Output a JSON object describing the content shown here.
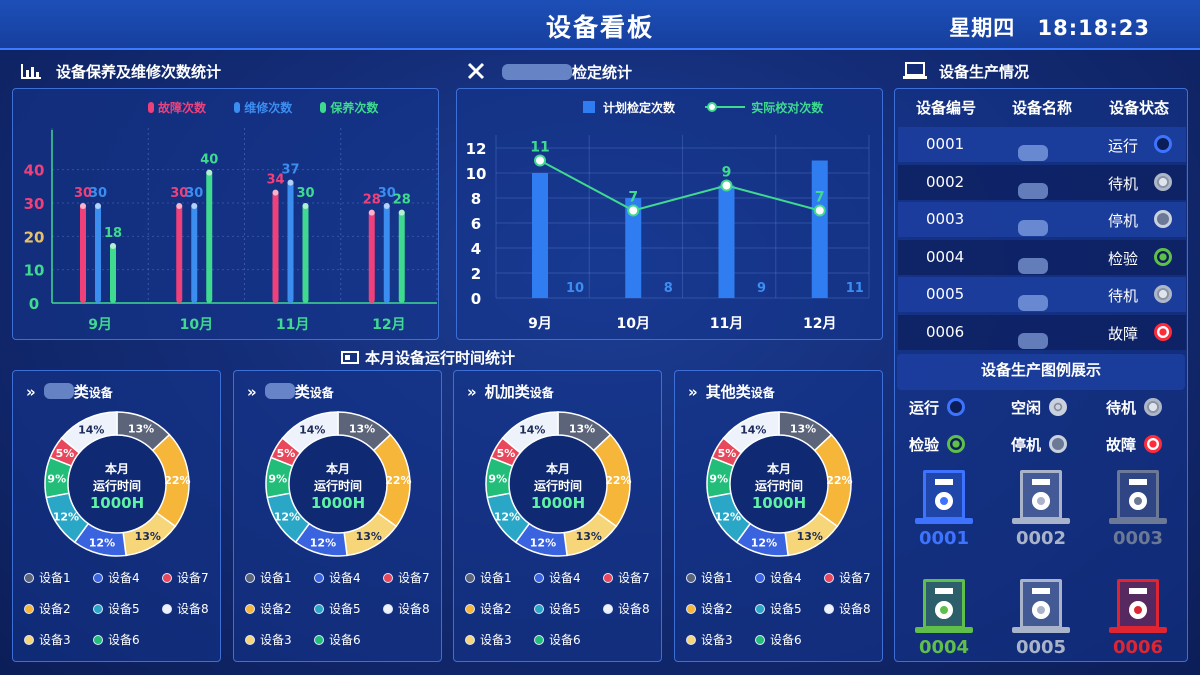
{
  "header": {
    "title": "设备看板",
    "weekday": "星期四",
    "time": "18:18:23"
  },
  "maintenance": {
    "title": "设备保养及维修次数统计",
    "legend": [
      "故障次数",
      "维修次数",
      "保养次数"
    ],
    "colors": [
      "#f0407a",
      "#3c8df0",
      "#3fd98f"
    ]
  },
  "inspection": {
    "title": "检定统计",
    "legend": [
      "计划检定次数",
      "实际校对次数"
    ]
  },
  "runtime_title": "本月设备运行时间统计",
  "chart_data": [
    {
      "type": "bar",
      "title": "设备保养及维修次数统计",
      "categories": [
        "9月",
        "10月",
        "11月",
        "12月"
      ],
      "series": [
        {
          "name": "故障次数",
          "values": [
            30,
            30,
            34,
            28
          ]
        },
        {
          "name": "维修次数",
          "values": [
            30,
            30,
            37,
            30
          ]
        },
        {
          "name": "保养次数",
          "values": [
            18,
            40,
            30,
            28
          ]
        }
      ],
      "yticks": [
        "0",
        "10",
        "20",
        "30",
        "40"
      ],
      "ylim": [
        0,
        45
      ]
    },
    {
      "type": "bar",
      "title": "检定统计",
      "categories": [
        "9月",
        "10月",
        "11月",
        "12月"
      ],
      "series": [
        {
          "name": "计划检定次数",
          "values": [
            10,
            8,
            9,
            11
          ],
          "kind": "bar"
        },
        {
          "name": "实际校对次数",
          "values": [
            11,
            7,
            9,
            7
          ],
          "kind": "line"
        }
      ],
      "yticks": [
        "0",
        "2",
        "4",
        "6",
        "8",
        "10",
        "12"
      ],
      "ylim": [
        0,
        12
      ]
    },
    {
      "type": "pie",
      "title": "类设备",
      "labels": [
        "设备1",
        "设备2",
        "设备3",
        "设备4",
        "设备5",
        "设备6",
        "设备7",
        "设备8"
      ],
      "values": [
        13,
        22,
        13,
        12,
        12,
        9,
        5,
        14
      ],
      "center_label": "本月运行时间",
      "center_value": "1000H"
    },
    {
      "type": "pie",
      "title": "类设备",
      "labels": [
        "设备1",
        "设备2",
        "设备3",
        "设备4",
        "设备5",
        "设备6",
        "设备7",
        "设备8"
      ],
      "values": [
        13,
        22,
        13,
        12,
        12,
        9,
        5,
        14
      ],
      "center_label": "本月运行时间",
      "center_value": "1000H"
    },
    {
      "type": "pie",
      "title": "机加类设备",
      "labels": [
        "设备1",
        "设备2",
        "设备3",
        "设备4",
        "设备5",
        "设备6",
        "设备7",
        "设备8"
      ],
      "values": [
        13,
        22,
        13,
        12,
        12,
        9,
        5,
        14
      ],
      "center_label": "本月运行时间",
      "center_value": "1000H"
    },
    {
      "type": "pie",
      "title": "其他类设备",
      "labels": [
        "设备1",
        "设备2",
        "设备3",
        "设备4",
        "设备5",
        "设备6",
        "设备7",
        "设备8"
      ],
      "values": [
        13,
        22,
        13,
        12,
        12,
        9,
        5,
        14
      ],
      "center_label": "本月运行时间",
      "center_value": "1000H"
    }
  ],
  "donut_colors": [
    "#5b6478",
    "#f6b63a",
    "#f7d67a",
    "#3a63e0",
    "#2aa7c6",
    "#23bd7a",
    "#e9485c",
    "#eef2fa"
  ],
  "donut_titles": [
    {
      "prefix": "",
      "main": "类",
      "sub": "设备"
    },
    {
      "prefix": "",
      "main": "类",
      "sub": "设备"
    },
    {
      "prefix": "",
      "main": "机加类",
      "sub": "设备"
    },
    {
      "prefix": "",
      "main": "其他类",
      "sub": "设备"
    }
  ],
  "donut_center": {
    "line1": "本月",
    "line2": "运行时间",
    "value": "1000H"
  },
  "production": {
    "title": "设备生产情况",
    "columns": [
      "设备编号",
      "设备名称",
      "设备状态"
    ],
    "rows": [
      {
        "id": "0001",
        "status": "运行",
        "icon": "running-icon"
      },
      {
        "id": "0002",
        "status": "待机",
        "icon": "standby-icon"
      },
      {
        "id": "0003",
        "status": "停机",
        "icon": "stopped-icon"
      },
      {
        "id": "0004",
        "status": "检验",
        "icon": "inspection-icon"
      },
      {
        "id": "0005",
        "status": "待机",
        "icon": "standby-icon"
      },
      {
        "id": "0006",
        "status": "故障",
        "icon": "fault-icon"
      }
    ]
  },
  "legend_panel": {
    "title": "设备生产图例展示",
    "items": [
      "运行",
      "空闲",
      "待机",
      "检验",
      "停机",
      "故障"
    ]
  },
  "machines": [
    {
      "id": "0001",
      "color": "#3d73ff"
    },
    {
      "id": "0002",
      "color": "#a9b3c9"
    },
    {
      "id": "0003",
      "color": "#6b7896"
    },
    {
      "id": "0004",
      "color": "#5fbf4a"
    },
    {
      "id": "0005",
      "color": "#a9b3c9"
    },
    {
      "id": "0006",
      "color": "#e02532"
    }
  ]
}
